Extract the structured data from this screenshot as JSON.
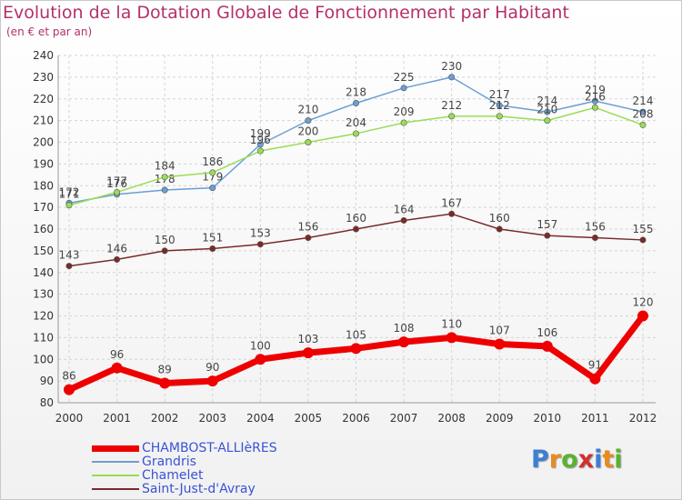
{
  "header": {
    "title": "Evolution de la Dotation Globale de Fonctionnement par Habitant",
    "subtitle": "(en € et par an)"
  },
  "logo": {
    "text": "Proxiti",
    "letters": [
      "P",
      "r",
      "o",
      "x",
      "i",
      "t",
      "i"
    ],
    "colors": [
      "#3c7fd4",
      "#e98b1c",
      "#5ab22e",
      "#d22f2f",
      "#3c7fd4",
      "#e98b1c",
      "#5ab22e"
    ]
  },
  "chart_data": {
    "type": "line",
    "title": "Evolution de la Dotation Globale de Fonctionnement par Habitant",
    "subtitle": "(en € et par an)",
    "xlabel": "",
    "ylabel": "",
    "x": [
      "2000",
      "2001",
      "2002",
      "2003",
      "2004",
      "2005",
      "2006",
      "2007",
      "2008",
      "2009",
      "2010",
      "2011",
      "2012"
    ],
    "ylim": [
      80,
      240
    ],
    "yticks": [
      80,
      90,
      100,
      110,
      120,
      130,
      140,
      150,
      160,
      170,
      180,
      190,
      200,
      210,
      220,
      230,
      240
    ],
    "grid": true,
    "legend_position": "bottom-left",
    "series": [
      {
        "name": "CHAMBOST-ALLIèRES",
        "color": "#ee0000",
        "width": 7,
        "values": [
          86,
          96,
          89,
          90,
          100,
          103,
          105,
          108,
          110,
          107,
          106,
          91,
          120
        ],
        "labels": [
          "86",
          "96",
          "89",
          "90",
          "100",
          "103",
          "105",
          "108",
          "110",
          "107",
          "106",
          "91",
          "120"
        ]
      },
      {
        "name": "Grandris",
        "color": "#6b9fd4",
        "width": 1.5,
        "values": [
          172,
          176,
          178,
          179,
          199,
          210,
          218,
          225,
          230,
          217,
          214,
          219,
          214
        ],
        "labels": [
          "172",
          "176",
          "178",
          "179",
          "199",
          "210",
          "218",
          "225",
          "230",
          "217",
          "214",
          "219",
          "214"
        ]
      },
      {
        "name": "Chamelet",
        "color": "#99dd55",
        "width": 1.5,
        "values": [
          171,
          177,
          184,
          186,
          196,
          200,
          204,
          209,
          212,
          212,
          210,
          216,
          208
        ],
        "labels": [
          "171",
          "177",
          "184",
          "186",
          "196",
          "200",
          "204",
          "209",
          "212",
          "212",
          "210",
          "216",
          "208"
        ]
      },
      {
        "name": "Saint-Just-d'Avray",
        "color": "#7a2a2a",
        "width": 1.5,
        "values": [
          143,
          146,
          150,
          151,
          153,
          156,
          160,
          164,
          167,
          160,
          157,
          156,
          155
        ],
        "labels": [
          "143",
          "146",
          "150",
          "151",
          "153",
          "156",
          "160",
          "164",
          "167",
          "160",
          "157",
          "156",
          "155"
        ]
      }
    ]
  }
}
